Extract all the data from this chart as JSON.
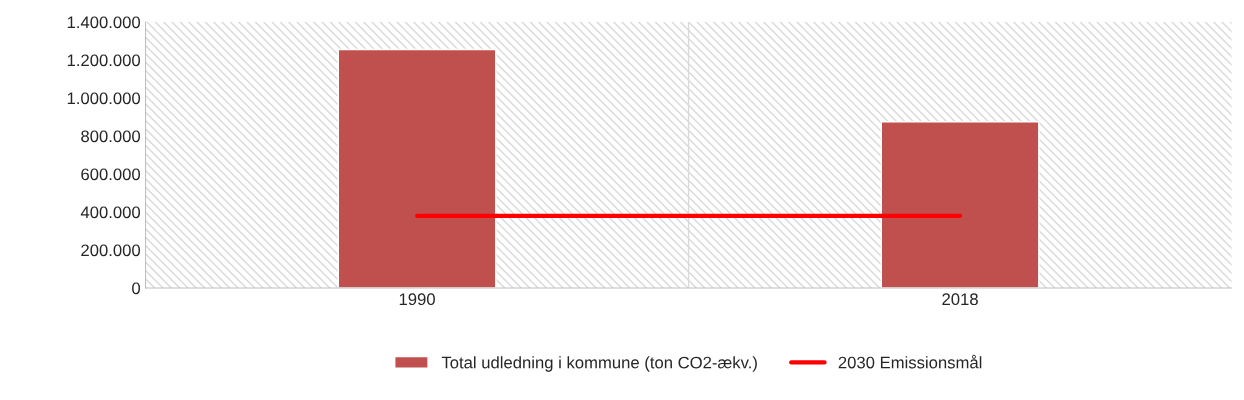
{
  "chart_data": {
    "type": "bar",
    "categories": [
      "1990",
      "2018"
    ],
    "series": [
      {
        "name": "Total udledning i kommune (ton CO2-ækv.)",
        "color": "#c0504d",
        "values": [
          1255000,
          875000
        ]
      },
      {
        "name": "2030 Emissionsmål",
        "type": "line",
        "color": "#ff0000",
        "values": [
          380000,
          380000
        ],
        "marker": "none"
      }
    ],
    "ylim": [
      0,
      1400000
    ],
    "yticks": [
      {
        "value": 0,
        "label": "0"
      },
      {
        "value": 200000,
        "label": "200.000"
      },
      {
        "value": 400000,
        "label": "400.000"
      },
      {
        "value": 600000,
        "label": "600.000"
      },
      {
        "value": 800000,
        "label": "800.000"
      },
      {
        "value": 1000000,
        "label": "1.000.000"
      },
      {
        "value": 1200000,
        "label": "1.200.000"
      },
      {
        "value": 1400000,
        "label": "1.400.000"
      }
    ],
    "grid": "x",
    "legend": "bottom"
  }
}
